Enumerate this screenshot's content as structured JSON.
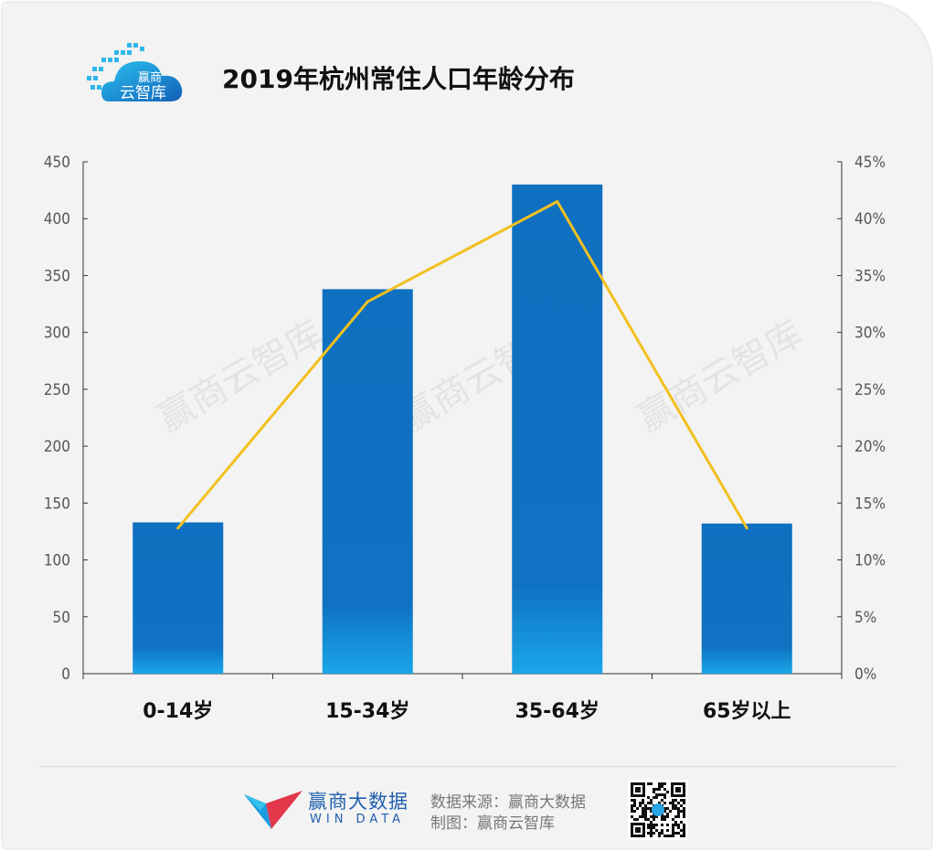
{
  "title": "2019年杭州常住人口年龄分布",
  "logo": {
    "line1": "赢商",
    "line2": "云智库"
  },
  "watermark": "赢商云智库",
  "chart_data": {
    "type": "bar",
    "categories": [
      "0-14岁",
      "15-34岁",
      "35-64岁",
      "65岁以上"
    ],
    "series": [
      {
        "type": "bar",
        "axis": "left",
        "values": [
          133,
          338,
          430,
          132
        ]
      },
      {
        "type": "line",
        "axis": "right",
        "values": [
          12.8,
          32.7,
          41.5,
          12.8
        ]
      }
    ],
    "left_axis": {
      "min": 0,
      "max": 450,
      "step": 50
    },
    "right_axis": {
      "min": 0,
      "max": 45,
      "step": 5,
      "unit": "%"
    },
    "colors": {
      "bar_top": "#0f6fc0",
      "bar_bottom": "#1aa6e8",
      "line": "#f2c01e"
    },
    "grid": false,
    "legend": "none"
  },
  "footer": {
    "brand_cn": "赢商大数据",
    "brand_en": "WIN DATA",
    "source": "数据来源：赢商大数据",
    "maker": "制图：赢商云智库"
  }
}
